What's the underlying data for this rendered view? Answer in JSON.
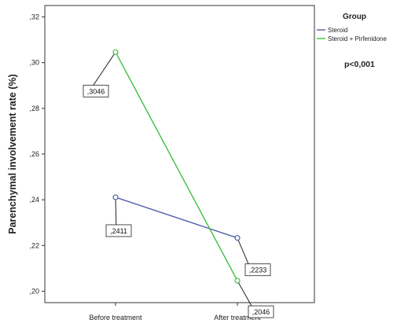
{
  "chart_data": {
    "type": "line",
    "categories": [
      "Before treatment",
      "After treatment"
    ],
    "series": [
      {
        "name": "Steroid",
        "values": [
          0.2411,
          0.2233
        ],
        "labels": [
          ",2411",
          ",2233"
        ],
        "color": "#4f5fa8"
      },
      {
        "name": "Steroid + Pirfenidone",
        "values": [
          0.3046,
          0.2046
        ],
        "labels": [
          ",3046",
          ",2046"
        ],
        "color": "#3fbf3f"
      }
    ],
    "ylabel": "Parenchymal involvement rate (%)",
    "ylim": [
      0.195,
      0.325
    ],
    "yticks": [
      0.2,
      0.22,
      0.24,
      0.26,
      0.28,
      0.3,
      0.32
    ],
    "ytick_labels": [
      ",20",
      ",22",
      ",24",
      ",26",
      ",28",
      ",30",
      ",32"
    ],
    "grid": false,
    "legend": {
      "title": "Group",
      "placement": "right"
    },
    "annotation": "p<0,001"
  }
}
